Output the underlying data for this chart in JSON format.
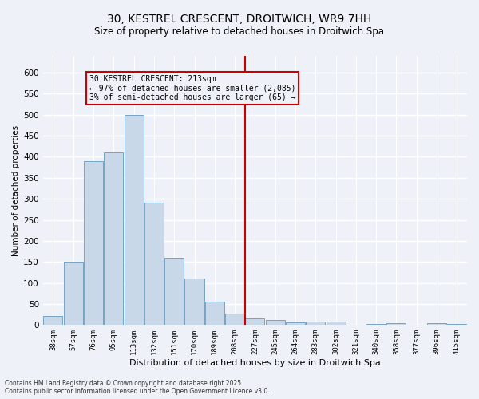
{
  "title1": "30, KESTREL CRESCENT, DROITWICH, WR9 7HH",
  "title2": "Size of property relative to detached houses in Droitwich Spa",
  "xlabel": "Distribution of detached houses by size in Droitwich Spa",
  "ylabel": "Number of detached properties",
  "categories": [
    "38sqm",
    "57sqm",
    "76sqm",
    "95sqm",
    "113sqm",
    "132sqm",
    "151sqm",
    "170sqm",
    "189sqm",
    "208sqm",
    "227sqm",
    "245sqm",
    "264sqm",
    "283sqm",
    "302sqm",
    "321sqm",
    "340sqm",
    "358sqm",
    "377sqm",
    "396sqm",
    "415sqm"
  ],
  "values": [
    22,
    150,
    390,
    410,
    500,
    290,
    160,
    110,
    55,
    28,
    15,
    12,
    6,
    8,
    8,
    0,
    2,
    4,
    0,
    4,
    2
  ],
  "bar_color": "#c8d8e8",
  "bar_edge_color": "#6699bb",
  "vline_x_index": 9,
  "vline_color": "#cc0000",
  "annotation_line1": "30 KESTREL CRESCENT: 213sqm",
  "annotation_line2": "← 97% of detached houses are smaller (2,085)",
  "annotation_line3": "3% of semi-detached houses are larger (65) →",
  "annotation_box_color": "#cc0000",
  "footnote": "Contains HM Land Registry data © Crown copyright and database right 2025.\nContains public sector information licensed under the Open Government Licence v3.0.",
  "bg_color": "#eef2f8",
  "grid_color": "#ffffff",
  "ylim": [
    0,
    640
  ],
  "yticks": [
    0,
    50,
    100,
    150,
    200,
    250,
    300,
    350,
    400,
    450,
    500,
    550,
    600
  ],
  "title1_fontsize": 10,
  "title2_fontsize": 8.5,
  "xlabel_fontsize": 8,
  "ylabel_fontsize": 7.5,
  "xtick_fontsize": 6.5,
  "ytick_fontsize": 7.5,
  "annot_fontsize": 7,
  "footnote_fontsize": 5.5
}
